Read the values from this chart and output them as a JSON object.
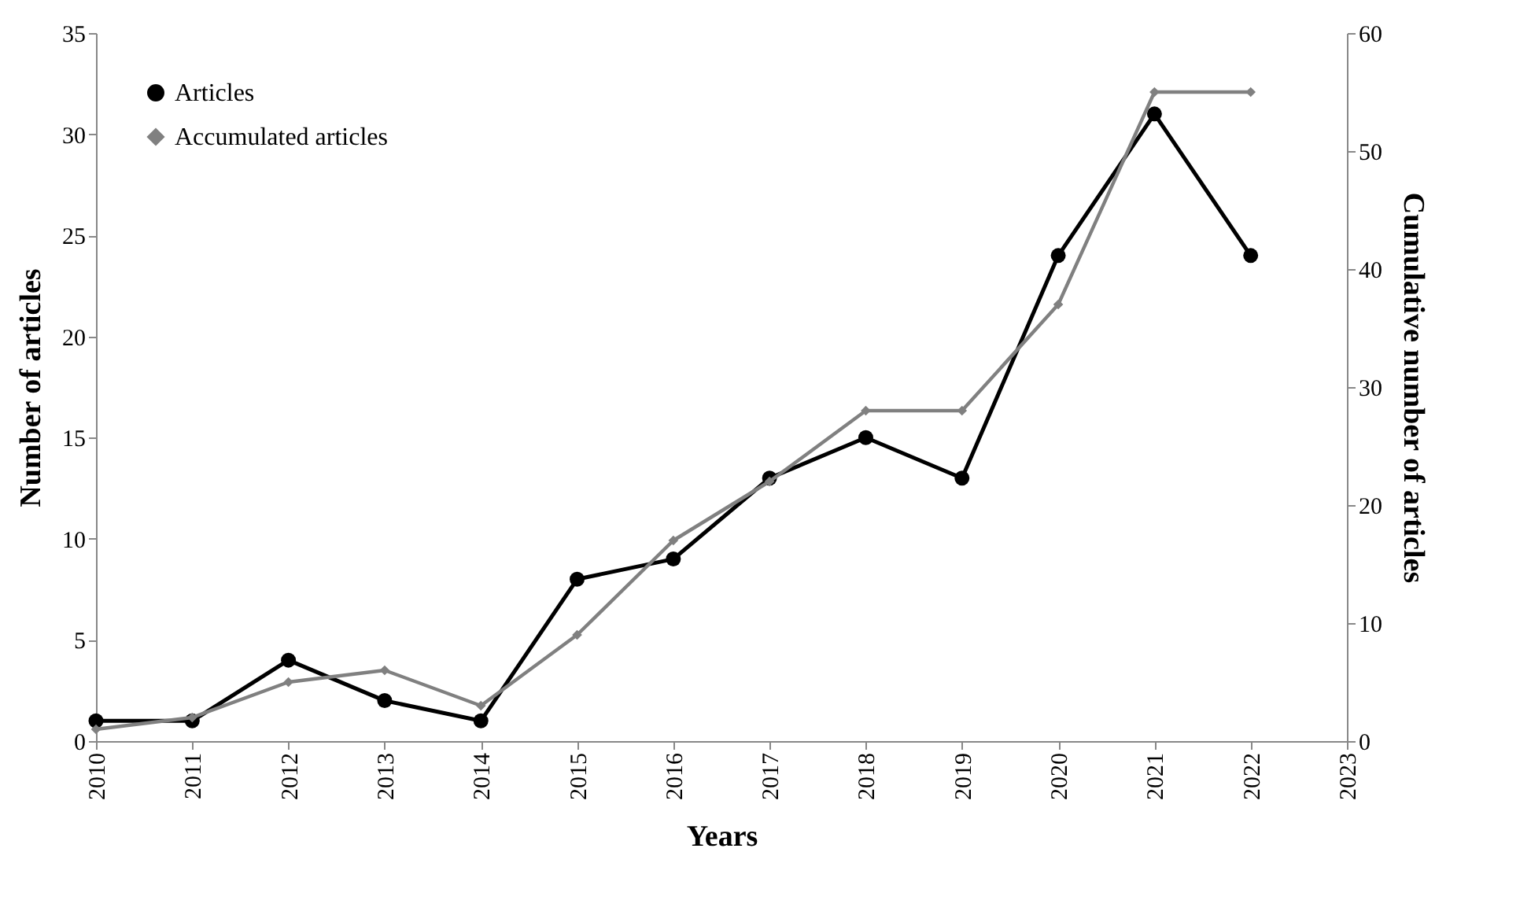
{
  "chart_data": {
    "type": "line",
    "xlabel": "Years",
    "ylabel": "Number of articles",
    "y2label": "Cumulative number of articles",
    "x": [
      2010,
      2011,
      2012,
      2013,
      2014,
      2015,
      2016,
      2017,
      2018,
      2019,
      2020,
      2021,
      2022
    ],
    "series": [
      {
        "name": "Articles",
        "color": "#000000",
        "marker": "circle",
        "values": [
          1,
          1,
          4,
          2,
          1,
          8,
          9,
          13,
          15,
          13,
          24,
          31,
          24
        ]
      },
      {
        "name": "Accumulated articles",
        "color": "#808080",
        "marker": "diamond",
        "axis": "y2",
        "values": [
          1,
          2,
          5,
          6,
          3,
          9,
          17,
          22,
          28,
          28,
          37,
          55,
          55
        ]
      }
    ],
    "xlim": [
      2010,
      2023
    ],
    "xticks": [
      2010,
      2011,
      2012,
      2013,
      2014,
      2015,
      2016,
      2017,
      2018,
      2019,
      2020,
      2021,
      2022,
      2023
    ],
    "ylim": [
      0,
      35
    ],
    "yticks": [
      0,
      5,
      10,
      15,
      20,
      25,
      30,
      35
    ],
    "y2lim": [
      0,
      60
    ],
    "y2ticks": [
      0,
      10,
      20,
      30,
      40,
      50,
      60
    ],
    "legend": "top left",
    "grid": false,
    "line_style": "solid"
  }
}
